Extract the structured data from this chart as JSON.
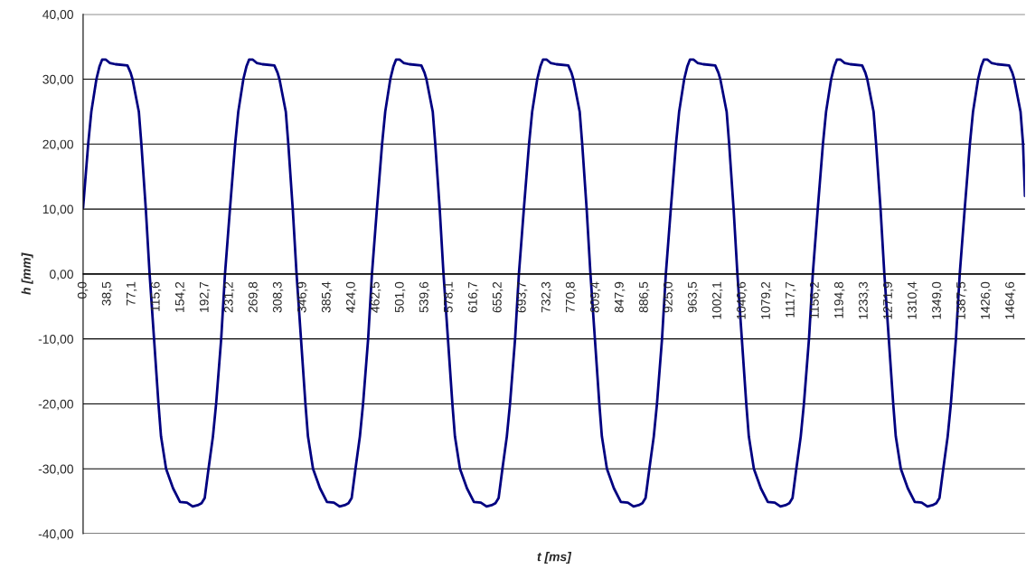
{
  "chart_data": {
    "type": "line",
    "xlabel": "t [ms]",
    "ylabel": "h [mm]",
    "x": [
      0,
      8,
      13,
      21,
      26,
      30,
      36,
      42,
      51,
      70,
      75,
      78,
      88,
      92,
      99,
      105,
      112,
      119,
      123,
      131,
      142,
      153,
      164,
      173,
      181,
      187,
      192,
      198,
      205,
      210,
      218,
      224,
      232,
      240,
      245,
      253,
      258,
      262,
      268,
      274,
      283,
      302,
      307,
      310,
      320,
      324,
      331,
      337,
      344,
      351,
      355,
      363,
      374,
      385,
      396,
      405,
      413,
      419,
      424,
      430,
      437,
      442,
      450,
      456,
      464,
      472,
      477,
      485,
      490,
      494,
      500,
      506,
      515,
      534,
      539,
      542,
      552,
      556,
      563,
      569,
      576,
      583,
      587,
      595,
      606,
      617,
      628,
      637,
      645,
      651,
      656,
      662,
      669,
      674,
      682,
      688,
      696,
      704,
      709,
      717,
      722,
      726,
      732,
      738,
      747,
      766,
      771,
      774,
      784,
      788,
      795,
      801,
      808,
      815,
      819,
      827,
      838,
      849,
      860,
      869,
      877,
      883,
      888,
      894,
      901,
      906,
      914,
      920,
      928,
      936,
      941,
      949,
      954,
      958,
      964,
      970,
      979,
      998,
      1003,
      1006,
      1016,
      1020,
      1027,
      1033,
      1040,
      1047,
      1051,
      1059,
      1070,
      1081,
      1092,
      1101,
      1109,
      1115,
      1120,
      1126,
      1133,
      1138,
      1146,
      1152,
      1160,
      1168,
      1173,
      1181,
      1186,
      1190,
      1196,
      1202,
      1211,
      1230,
      1235,
      1238,
      1248,
      1252,
      1259,
      1265,
      1272,
      1279,
      1283,
      1291,
      1302,
      1313,
      1324,
      1333,
      1341,
      1347,
      1352,
      1358,
      1365,
      1370,
      1378,
      1384,
      1392,
      1400,
      1405,
      1413,
      1418,
      1422,
      1428,
      1434,
      1443,
      1462,
      1467,
      1470,
      1480,
      1484,
      1487
    ],
    "series": [
      {
        "color": "#000080",
        "values": [
          10.2,
          20,
          25,
          30,
          32,
          33,
          33,
          32.5,
          32.3,
          32.1,
          31,
          30,
          25,
          20,
          10,
          0,
          -10,
          -20,
          -25,
          -30,
          -33,
          -35.1,
          -35.2,
          -35.8,
          -35.6,
          -35.3,
          -34.5,
          -30,
          -25,
          -20,
          -10,
          0,
          10.2,
          20,
          25,
          30,
          32,
          33,
          33,
          32.5,
          32.3,
          32.1,
          31,
          30,
          25,
          20,
          10,
          0,
          -10,
          -20,
          -25,
          -30,
          -33,
          -35.1,
          -35.2,
          -35.8,
          -35.6,
          -35.3,
          -34.5,
          -30,
          -25,
          -20,
          -10,
          0,
          10.2,
          20,
          25,
          30,
          32,
          33,
          33,
          32.5,
          32.3,
          32.1,
          31,
          30,
          25,
          20,
          10,
          0,
          -10,
          -20,
          -25,
          -30,
          -33,
          -35.1,
          -35.2,
          -35.8,
          -35.6,
          -35.3,
          -34.5,
          -30,
          -25,
          -20,
          -10,
          0,
          10.2,
          20,
          25,
          30,
          32,
          33,
          33,
          32.5,
          32.3,
          32.1,
          31,
          30,
          25,
          20,
          10,
          0,
          -10,
          -20,
          -25,
          -30,
          -33,
          -35.1,
          -35.2,
          -35.8,
          -35.6,
          -35.3,
          -34.5,
          -30,
          -25,
          -20,
          -10,
          0,
          10.2,
          20,
          25,
          30,
          32,
          33,
          33,
          32.5,
          32.3,
          32.1,
          31,
          30,
          25,
          20,
          10,
          0,
          -10,
          -20,
          -25,
          -30,
          -33,
          -35.1,
          -35.2,
          -35.8,
          -35.6,
          -35.3,
          -34.5,
          -30,
          -25,
          -20,
          -10,
          0,
          10.2,
          20,
          25,
          30,
          32,
          33,
          33,
          32.5,
          32.3,
          32.1,
          31,
          30,
          25,
          20,
          10,
          0,
          -10,
          -20,
          -25,
          -30,
          -33,
          -35.1,
          -35.2,
          -35.8,
          -35.6,
          -35.3,
          -34.5,
          -30,
          -25,
          -20,
          -10,
          0,
          10.2,
          20,
          25,
          30,
          32,
          33,
          33,
          32.5,
          32.3,
          32.1,
          31,
          30,
          25,
          20,
          12
        ]
      }
    ],
    "xlim": [
      0,
      1487
    ],
    "xticks": [
      {
        "value": 0,
        "label": "0,0"
      },
      {
        "value": 38.5,
        "label": "38,5"
      },
      {
        "value": 77.1,
        "label": "77,1"
      },
      {
        "value": 115.6,
        "label": "115,6"
      },
      {
        "value": 154.2,
        "label": "154,2"
      },
      {
        "value": 192.7,
        "label": "192,7"
      },
      {
        "value": 231.2,
        "label": "231,2"
      },
      {
        "value": 269.8,
        "label": "269,8"
      },
      {
        "value": 308.3,
        "label": "308,3"
      },
      {
        "value": 346.9,
        "label": "346,9"
      },
      {
        "value": 385.4,
        "label": "385,4"
      },
      {
        "value": 424.0,
        "label": "424,0"
      },
      {
        "value": 462.5,
        "label": "462,5"
      },
      {
        "value": 501.0,
        "label": "501,0"
      },
      {
        "value": 539.6,
        "label": "539,6"
      },
      {
        "value": 578.1,
        "label": "578,1"
      },
      {
        "value": 616.7,
        "label": "616,7"
      },
      {
        "value": 655.2,
        "label": "655,2"
      },
      {
        "value": 693.7,
        "label": "693,7"
      },
      {
        "value": 732.3,
        "label": "732,3"
      },
      {
        "value": 770.8,
        "label": "770,8"
      },
      {
        "value": 809.4,
        "label": "809,4"
      },
      {
        "value": 847.9,
        "label": "847,9"
      },
      {
        "value": 886.5,
        "label": "886,5"
      },
      {
        "value": 925.0,
        "label": "925,0"
      },
      {
        "value": 963.5,
        "label": "963,5"
      },
      {
        "value": 1002.1,
        "label": "1002,1"
      },
      {
        "value": 1040.6,
        "label": "1040,6"
      },
      {
        "value": 1079.2,
        "label": "1079,2"
      },
      {
        "value": 1117.7,
        "label": "1117,7"
      },
      {
        "value": 1156.2,
        "label": "1156,2"
      },
      {
        "value": 1194.8,
        "label": "1194,8"
      },
      {
        "value": 1233.3,
        "label": "1233,3"
      },
      {
        "value": 1271.9,
        "label": "1271,9"
      },
      {
        "value": 1310.4,
        "label": "1310,4"
      },
      {
        "value": 1349.0,
        "label": "1349,0"
      },
      {
        "value": 1387.5,
        "label": "1387,5"
      },
      {
        "value": 1426.0,
        "label": "1426,0"
      },
      {
        "value": 1464.6,
        "label": "1464,6"
      }
    ],
    "ylim": [
      -40,
      40
    ],
    "yticks": [
      {
        "value": -40,
        "label": "-40,00"
      },
      {
        "value": -30,
        "label": "-30,00"
      },
      {
        "value": -20,
        "label": "-20,00"
      },
      {
        "value": -10,
        "label": "-10,00"
      },
      {
        "value": 0,
        "label": "0,00"
      },
      {
        "value": 10,
        "label": "10,00"
      },
      {
        "value": 20,
        "label": "20,00"
      },
      {
        "value": 30,
        "label": "30,00"
      },
      {
        "value": 40,
        "label": "40,00"
      }
    ],
    "grid": "y",
    "legend": false,
    "marker": "none",
    "line_style": "solid"
  }
}
